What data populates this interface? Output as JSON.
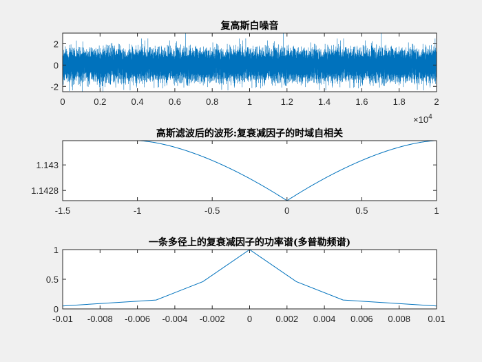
{
  "colors": {
    "line": "#0072BD",
    "axis": "#262626",
    "figure": "#f0f0f0"
  },
  "chart_data": [
    {
      "type": "line",
      "title": "复高斯白噪音",
      "xlim": [
        0,
        20000
      ],
      "ylim": [
        -2.5,
        3
      ],
      "xticks": [
        0,
        2000,
        4000,
        6000,
        8000,
        10000,
        12000,
        14000,
        16000,
        18000,
        20000
      ],
      "xtick_labels": [
        "0",
        "0.2",
        "0.4",
        "0.6",
        "0.8",
        "1",
        "1.2",
        "1.4",
        "1.6",
        "1.8",
        "2"
      ],
      "yticks": [
        -2,
        0,
        2
      ],
      "ytick_labels": [
        "-2",
        "0",
        "2"
      ],
      "x_exponent_label": "×10",
      "x_exponent": "4",
      "series": [
        {
          "name": "noise",
          "n": 20000,
          "std": 0.7,
          "note_random": true
        }
      ]
    },
    {
      "type": "line",
      "title": "高斯滤波后的波形:复衰减因子的时域自相关",
      "xlim": [
        -1.5,
        1
      ],
      "ylim": [
        1.14272,
        1.14319
      ],
      "xticks": [
        -1.5,
        -1,
        -0.5,
        0,
        0.5,
        1
      ],
      "xtick_labels": [
        "-1.5",
        "-1",
        "-0.5",
        "0",
        "0.5",
        "1"
      ],
      "yticks": [
        1.1428,
        1.143
      ],
      "ytick_labels": [
        "1.1428",
        "1.143"
      ],
      "series": [
        {
          "name": "autocorr",
          "x_range": [
            -1,
            1
          ],
          "min": 1.14272,
          "max": 1.14319,
          "shape_exponent": 1.6
        }
      ]
    },
    {
      "type": "line",
      "title": "一条多径上的复衰减因子的功率谱(多普勒频谱)",
      "xlim": [
        -0.01,
        0.01
      ],
      "ylim": [
        0,
        1
      ],
      "xticks": [
        -0.01,
        -0.008,
        -0.006,
        -0.004,
        -0.002,
        0,
        0.002,
        0.004,
        0.006,
        0.008,
        0.01
      ],
      "xtick_labels": [
        "-0.01",
        "-0.008",
        "-0.006",
        "-0.004",
        "-0.002",
        "0",
        "0.002",
        "0.004",
        "0.006",
        "0.008",
        "0.01"
      ],
      "yticks": [
        0,
        0.5,
        1
      ],
      "ytick_labels": [
        "0",
        "0.5",
        "1"
      ],
      "series": [
        {
          "name": "psd",
          "x": [
            -0.01,
            -0.005,
            -0.0025,
            0,
            0.0025,
            0.005,
            0.01
          ],
          "y": [
            0.05,
            0.15,
            0.46,
            1,
            0.46,
            0.15,
            0.05
          ]
        }
      ]
    }
  ]
}
